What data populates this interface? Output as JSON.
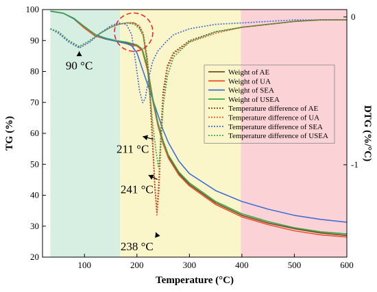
{
  "chart_data": {
    "type": "line",
    "title": "",
    "xlabel": "Temperature (°C)",
    "ylabel_left": "TG (%)",
    "ylabel_right": "DTG (%/°C)",
    "xlim": [
      20,
      600
    ],
    "ylim_left": [
      20,
      100
    ],
    "ylim_right": [
      -1.625,
      0.05
    ],
    "x_ticks": [
      100,
      200,
      300,
      400,
      500,
      600
    ],
    "y_ticks_left": [
      20,
      30,
      40,
      50,
      60,
      70,
      80,
      90,
      100
    ],
    "y_ticks_right": [
      {
        "value": 0,
        "label": "0"
      },
      {
        "value": -1,
        "label": "-1"
      }
    ],
    "shaded_regions": [
      {
        "x_start": 35,
        "x_end": 168,
        "color": "#d7efe2"
      },
      {
        "x_start": 168,
        "x_end": 398,
        "color": "#fbf6c9"
      },
      {
        "x_start": 398,
        "x_end": 600,
        "color": "#fbd3d6"
      }
    ],
    "legend_position": "center-right",
    "series": [
      {
        "name": "Weight of AE",
        "axis": "left",
        "style": "solid",
        "color": "#6e4a1e",
        "x": [
          35,
          60,
          80,
          100,
          120,
          140,
          160,
          180,
          200,
          210,
          220,
          230,
          240,
          250,
          260,
          280,
          300,
          350,
          400,
          450,
          500,
          550,
          600
        ],
        "y": [
          99.5,
          98.8,
          97,
          94,
          91.5,
          90.5,
          89.8,
          89.2,
          88.5,
          87.2,
          81,
          71,
          63,
          57,
          52.5,
          47,
          43.5,
          37.5,
          33.5,
          31,
          29.2,
          27.8,
          27
        ]
      },
      {
        "name": "Weight of UA",
        "axis": "left",
        "style": "solid",
        "color": "#e8542e",
        "x": [
          35,
          60,
          80,
          100,
          120,
          140,
          160,
          180,
          200,
          210,
          220,
          230,
          240,
          250,
          260,
          280,
          300,
          350,
          400,
          450,
          500,
          550,
          600
        ],
        "y": [
          99.5,
          98.8,
          97,
          94,
          91.5,
          90.5,
          89.8,
          89,
          88.2,
          86.8,
          80.5,
          70.5,
          62.5,
          56.5,
          52,
          46.5,
          43,
          37,
          33,
          30.5,
          28.5,
          27.2,
          26.5
        ]
      },
      {
        "name": "Weight of SEA",
        "axis": "left",
        "style": "solid",
        "color": "#3f6fd6",
        "x": [
          35,
          60,
          80,
          100,
          120,
          140,
          160,
          180,
          190,
          200,
          210,
          220,
          230,
          240,
          250,
          260,
          280,
          300,
          350,
          400,
          450,
          500,
          550,
          600
        ],
        "y": [
          99.5,
          98.8,
          97,
          94.5,
          92,
          90.5,
          89.8,
          89,
          88.3,
          86,
          81,
          76,
          71,
          66,
          61,
          57,
          51,
          47,
          41.5,
          38,
          35.5,
          33.5,
          32.2,
          31.3
        ]
      },
      {
        "name": "Weight of USEA",
        "axis": "left",
        "style": "solid",
        "color": "#3aa64a",
        "x": [
          35,
          60,
          80,
          100,
          120,
          140,
          160,
          180,
          200,
          210,
          220,
          230,
          240,
          250,
          260,
          280,
          300,
          350,
          400,
          450,
          500,
          550,
          600
        ],
        "y": [
          99.5,
          98.8,
          97.2,
          94.5,
          92,
          90.8,
          90,
          89.5,
          88.6,
          87.3,
          81.5,
          71.5,
          63.5,
          57.5,
          53,
          47.5,
          44,
          38,
          34,
          31.5,
          29.5,
          28.2,
          27.5
        ]
      },
      {
        "name": "Temperature difference of AE",
        "axis": "right",
        "style": "dotted",
        "color": "#6e4a1e",
        "x": [
          35,
          50,
          70,
          90,
          110,
          130,
          150,
          165,
          180,
          195,
          205,
          212,
          220,
          225,
          230,
          234,
          238,
          242,
          246,
          250,
          258,
          270,
          300,
          350,
          400,
          450,
          500,
          550,
          600
        ],
        "y": [
          -0.08,
          -0.1,
          -0.16,
          -0.2,
          -0.16,
          -0.11,
          -0.07,
          -0.05,
          -0.04,
          -0.04,
          -0.07,
          -0.12,
          -0.3,
          -0.55,
          -0.88,
          -1.15,
          -1.32,
          -1.1,
          -0.75,
          -0.5,
          -0.33,
          -0.24,
          -0.16,
          -0.1,
          -0.07,
          -0.05,
          -0.03,
          -0.02,
          -0.02
        ]
      },
      {
        "name": "Temperature difference of UA",
        "axis": "right",
        "style": "dotted",
        "color": "#e8542e",
        "x": [
          35,
          50,
          70,
          90,
          110,
          130,
          150,
          165,
          180,
          195,
          205,
          212,
          220,
          225,
          230,
          234,
          238,
          242,
          246,
          250,
          258,
          270,
          300,
          350,
          400,
          450,
          500,
          550,
          600
        ],
        "y": [
          -0.08,
          -0.1,
          -0.16,
          -0.21,
          -0.17,
          -0.11,
          -0.07,
          -0.05,
          -0.04,
          -0.04,
          -0.06,
          -0.11,
          -0.28,
          -0.5,
          -0.82,
          -1.12,
          -1.34,
          -1.18,
          -0.82,
          -0.55,
          -0.35,
          -0.25,
          -0.17,
          -0.11,
          -0.07,
          -0.05,
          -0.03,
          -0.02,
          -0.02
        ]
      },
      {
        "name": "Temperature difference of SEA",
        "axis": "right",
        "style": "dotted",
        "color": "#3f6fd6",
        "x": [
          35,
          50,
          70,
          90,
          110,
          130,
          150,
          165,
          180,
          190,
          198,
          205,
          211,
          216,
          222,
          230,
          240,
          255,
          270,
          300,
          350,
          400,
          450,
          500,
          550,
          600
        ],
        "y": [
          -0.08,
          -0.11,
          -0.17,
          -0.21,
          -0.17,
          -0.11,
          -0.06,
          -0.04,
          -0.05,
          -0.12,
          -0.32,
          -0.5,
          -0.58,
          -0.55,
          -0.42,
          -0.3,
          -0.23,
          -0.17,
          -0.12,
          -0.08,
          -0.05,
          -0.04,
          -0.03,
          -0.02,
          -0.02,
          -0.02
        ]
      },
      {
        "name": "Temperature difference of USEA",
        "axis": "right",
        "style": "dotted",
        "color": "#3aa64a",
        "x": [
          35,
          50,
          70,
          90,
          110,
          130,
          150,
          165,
          180,
          195,
          205,
          212,
          218,
          224,
          230,
          236,
          241,
          246,
          250,
          258,
          270,
          300,
          350,
          400,
          450,
          500,
          550,
          600
        ],
        "y": [
          -0.08,
          -0.1,
          -0.16,
          -0.2,
          -0.16,
          -0.11,
          -0.07,
          -0.05,
          -0.04,
          -0.05,
          -0.08,
          -0.13,
          -0.28,
          -0.5,
          -0.72,
          -0.9,
          -1.02,
          -0.85,
          -0.6,
          -0.4,
          -0.27,
          -0.17,
          -0.1,
          -0.07,
          -0.05,
          -0.03,
          -0.02,
          -0.02
        ]
      }
    ],
    "annotations": [
      {
        "text": "90 °C",
        "x": 90,
        "y_left": 82,
        "arrow_to": {
          "x": 90,
          "y_left": 86.5
        }
      },
      {
        "text": "211 °C",
        "x": 192,
        "y_left": 55,
        "arrow_to": {
          "x": 211,
          "y_left": 59
        }
      },
      {
        "text": "241 °C",
        "x": 200,
        "y_left": 42,
        "arrow_to": {
          "x": 222,
          "y_left": 46.5
        }
      },
      {
        "text": "238 °C",
        "x": 200,
        "y_left": 23.5,
        "arrow_to": {
          "x": 236,
          "y_left": 28
        }
      }
    ]
  }
}
